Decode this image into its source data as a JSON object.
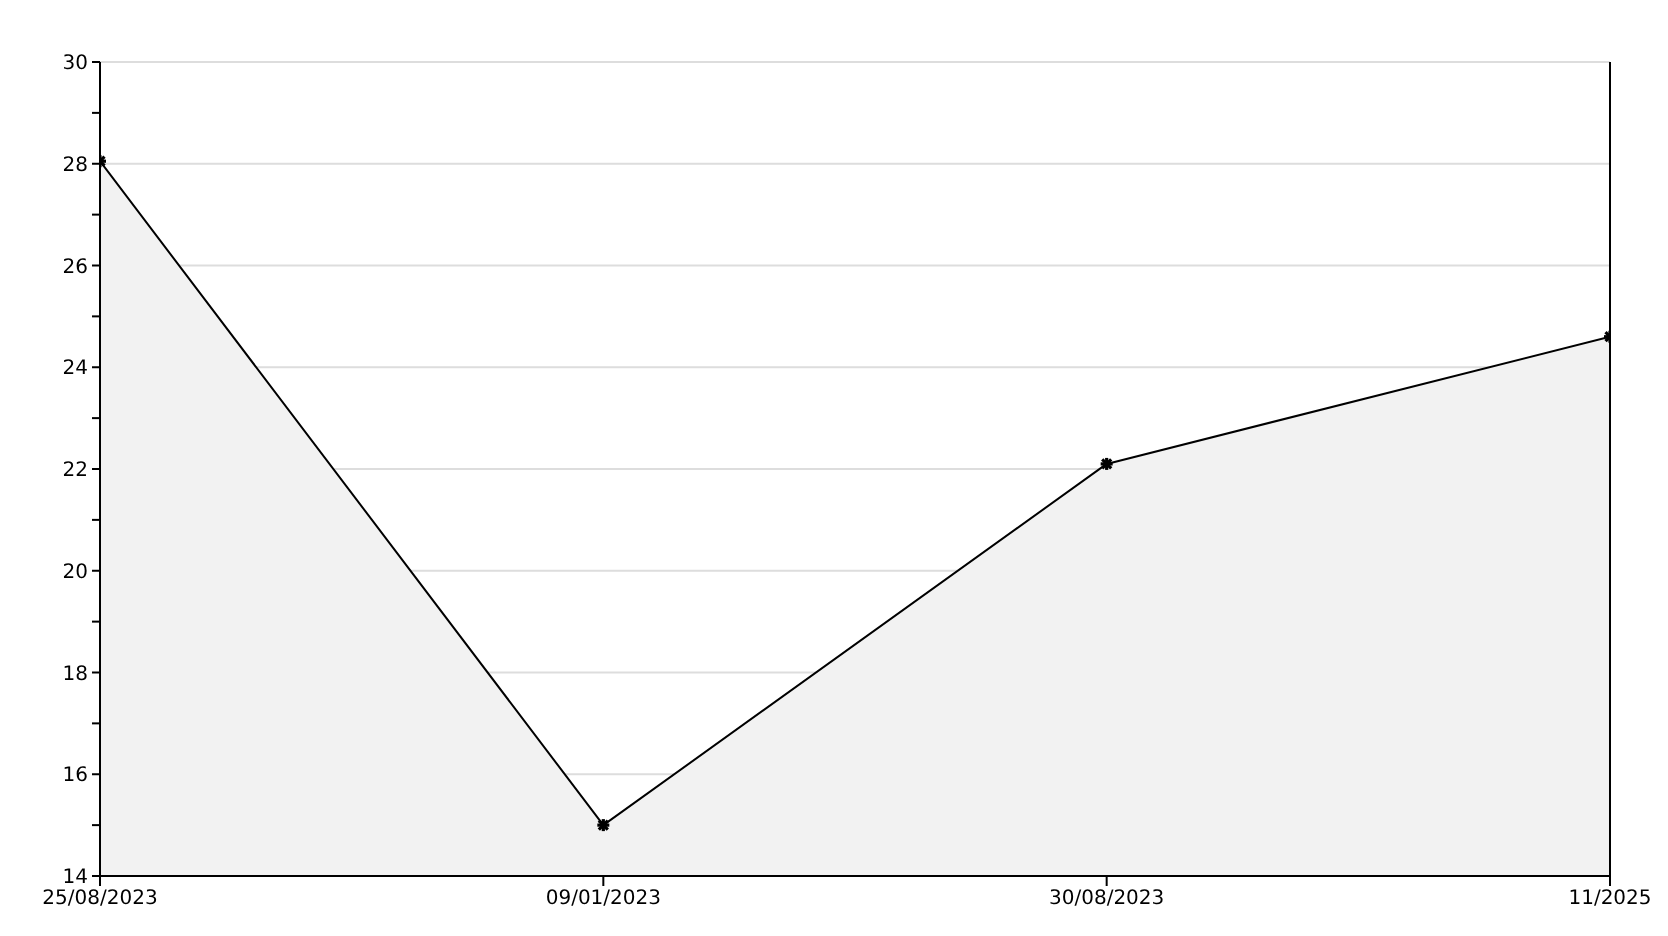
{
  "chart_data": {
    "type": "area",
    "categories": [
      "25/08/2023",
      "09/01/2023",
      "30/08/2023",
      "11/2025"
    ],
    "series": [
      {
        "color": "#000000",
        "values": [
          28.05,
          15.0,
          22.1,
          24.6
        ]
      }
    ],
    "ylim": [
      14,
      30
    ],
    "yticks": [
      14,
      {
        "value": 15,
        "label": null
      },
      16,
      {
        "value": 17,
        "label": null
      },
      18,
      {
        "value": 19,
        "label": null
      },
      20,
      {
        "value": 21,
        "label": null
      },
      22,
      {
        "value": 23,
        "label": null
      },
      24,
      {
        "value": 25,
        "label": null
      },
      26,
      {
        "value": 27,
        "label": null
      },
      28,
      {
        "value": 29,
        "label": null
      },
      30
    ],
    "grid": "y",
    "marker": "cross",
    "line_style": "solid"
  }
}
